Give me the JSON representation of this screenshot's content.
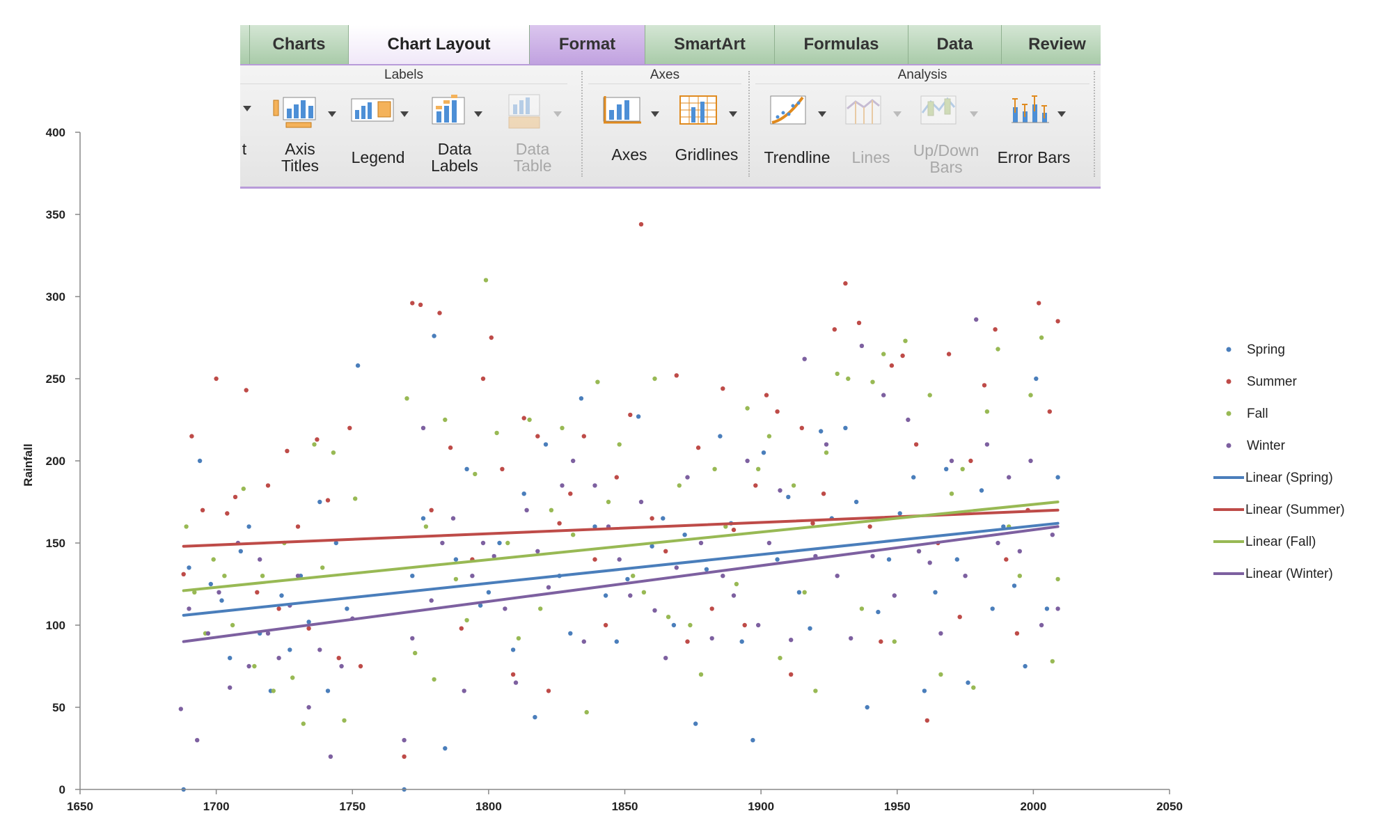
{
  "ribbon": {
    "tabs": [
      {
        "label": "Charts"
      },
      {
        "label": "Chart Layout"
      },
      {
        "label": "Format"
      },
      {
        "label": "SmartArt"
      },
      {
        "label": "Formulas"
      },
      {
        "label": "Data"
      },
      {
        "label": "Review"
      }
    ],
    "active_tab": "Chart Layout",
    "groups": {
      "labels": "Labels",
      "axes": "Axes",
      "analysis": "Analysis"
    },
    "partial_label": "t",
    "buttons": {
      "axis_titles": "Axis\nTitles",
      "legend": "Legend",
      "data_labels": "Data\nLabels",
      "data_table": "Data\nTable",
      "axes": "Axes",
      "gridlines": "Gridlines",
      "trendline": "Trendline",
      "lines": "Lines",
      "updown_bars": "Up/Down\nBars",
      "error_bars": "Error Bars"
    }
  },
  "colors": {
    "spring": "#4a7ebb",
    "summer": "#be4b48",
    "fall": "#98b954",
    "winter": "#7d60a0",
    "accent": "#b89bd9"
  },
  "chart_data": {
    "type": "scatter",
    "title": "",
    "xlabel": "",
    "ylabel": "Rainfall",
    "xlim": [
      1650,
      2050
    ],
    "ylim": [
      0,
      400
    ],
    "xticks": [
      1650,
      1700,
      1750,
      1800,
      1850,
      1900,
      1950,
      2000,
      2050
    ],
    "yticks": [
      0,
      50,
      100,
      150,
      200,
      250,
      300,
      350,
      400
    ],
    "grid": false,
    "legend_position": "right",
    "legend": [
      "Spring",
      "Summer",
      "Fall",
      "Winter",
      "Linear (Spring)",
      "Linear (Summer)",
      "Linear (Fall)",
      "Linear (Winter)"
    ],
    "series": [
      {
        "name": "Spring",
        "x": [
          1688,
          1690,
          1694,
          1698,
          1702,
          1705,
          1709,
          1712,
          1716,
          1720,
          1724,
          1727,
          1731,
          1734,
          1738,
          1741,
          1744,
          1748,
          1752,
          1769,
          1772,
          1776,
          1780,
          1784,
          1788,
          1792,
          1797,
          1800,
          1804,
          1809,
          1813,
          1817,
          1821,
          1826,
          1830,
          1834,
          1839,
          1843,
          1847,
          1851,
          1855,
          1860,
          1864,
          1868,
          1872,
          1876,
          1880,
          1885,
          1889,
          1893,
          1897,
          1901,
          1906,
          1910,
          1914,
          1918,
          1922,
          1926,
          1931,
          1935,
          1939,
          1943,
          1947,
          1951,
          1956,
          1960,
          1964,
          1968,
          1972,
          1976,
          1981,
          1985,
          1989,
          1993,
          1997,
          2001,
          2005,
          2009
        ],
        "values": [
          0,
          135,
          200,
          125,
          115,
          80,
          145,
          160,
          95,
          60,
          118,
          85,
          130,
          102,
          175,
          60,
          150,
          110,
          258,
          0,
          130,
          165,
          276,
          25,
          140,
          195,
          112,
          120,
          150,
          85,
          180,
          44,
          210,
          130,
          95,
          238,
          160,
          118,
          90,
          128,
          227,
          148,
          165,
          100,
          155,
          40,
          134,
          215,
          162,
          90,
          30,
          205,
          140,
          178,
          120,
          98,
          218,
          165,
          220,
          175,
          50,
          108,
          140,
          168,
          190,
          60,
          120,
          195,
          140,
          65,
          182,
          110,
          160,
          124,
          75,
          250,
          110,
          190
        ]
      },
      {
        "name": "Summer",
        "x": [
          1688,
          1691,
          1695,
          1700,
          1704,
          1707,
          1711,
          1715,
          1719,
          1723,
          1726,
          1730,
          1734,
          1737,
          1741,
          1745,
          1749,
          1753,
          1769,
          1772,
          1775,
          1779,
          1782,
          1786,
          1790,
          1794,
          1798,
          1801,
          1805,
          1809,
          1813,
          1818,
          1822,
          1826,
          1830,
          1835,
          1839,
          1843,
          1847,
          1852,
          1856,
          1860,
          1865,
          1869,
          1873,
          1877,
          1882,
          1886,
          1890,
          1894,
          1898,
          1902,
          1906,
          1911,
          1915,
          1919,
          1923,
          1927,
          1931,
          1936,
          1940,
          1944,
          1948,
          1952,
          1957,
          1961,
          1965,
          1969,
          1973,
          1977,
          1982,
          1986,
          1990,
          1994,
          1998,
          2002,
          2006,
          2009
        ],
        "values": [
          131,
          215,
          170,
          250,
          168,
          178,
          243,
          120,
          185,
          110,
          206,
          160,
          98,
          213,
          176,
          80,
          220,
          75,
          20,
          296,
          295,
          170,
          290,
          208,
          98,
          140,
          250,
          275,
          195,
          70,
          226,
          215,
          60,
          162,
          180,
          215,
          140,
          100,
          190,
          228,
          344,
          165,
          145,
          252,
          90,
          208,
          110,
          244,
          158,
          100,
          185,
          240,
          230,
          70,
          220,
          162,
          180,
          280,
          308,
          284,
          160,
          90,
          258,
          264,
          210,
          42,
          150,
          265,
          105,
          200,
          246,
          280,
          140,
          95,
          170,
          296,
          230,
          285
        ]
      },
      {
        "name": "Fall",
        "x": [
          1689,
          1692,
          1696,
          1699,
          1703,
          1706,
          1710,
          1714,
          1717,
          1721,
          1725,
          1728,
          1732,
          1736,
          1739,
          1743,
          1747,
          1751,
          1770,
          1773,
          1777,
          1780,
          1784,
          1788,
          1792,
          1795,
          1799,
          1803,
          1807,
          1811,
          1815,
          1819,
          1823,
          1827,
          1831,
          1836,
          1840,
          1844,
          1848,
          1853,
          1857,
          1861,
          1866,
          1870,
          1874,
          1878,
          1883,
          1887,
          1891,
          1895,
          1899,
          1903,
          1907,
          1912,
          1916,
          1920,
          1924,
          1928,
          1932,
          1937,
          1941,
          1945,
          1949,
          1953,
          1958,
          1962,
          1966,
          1970,
          1974,
          1978,
          1983,
          1987,
          1991,
          1995,
          1999,
          2003,
          2007,
          2009
        ],
        "values": [
          160,
          120,
          95,
          140,
          130,
          100,
          183,
          75,
          130,
          60,
          150,
          68,
          40,
          210,
          135,
          205,
          42,
          177,
          238,
          83,
          160,
          67,
          225,
          128,
          103,
          192,
          310,
          217,
          150,
          92,
          225,
          110,
          170,
          220,
          155,
          47,
          248,
          175,
          210,
          130,
          120,
          250,
          105,
          185,
          100,
          70,
          195,
          160,
          125,
          232,
          195,
          215,
          80,
          185,
          120,
          60,
          205,
          253,
          250,
          110,
          248,
          265,
          90,
          273,
          145,
          240,
          70,
          180,
          195,
          62,
          230,
          268,
          160,
          130,
          240,
          275,
          78,
          128
        ]
      },
      {
        "name": "Winter",
        "x": [
          1687,
          1690,
          1693,
          1697,
          1701,
          1705,
          1708,
          1712,
          1716,
          1719,
          1723,
          1727,
          1730,
          1734,
          1738,
          1742,
          1746,
          1750,
          1769,
          1772,
          1776,
          1779,
          1783,
          1787,
          1791,
          1794,
          1798,
          1802,
          1806,
          1810,
          1814,
          1818,
          1822,
          1827,
          1831,
          1835,
          1839,
          1844,
          1848,
          1852,
          1856,
          1861,
          1865,
          1869,
          1873,
          1878,
          1882,
          1886,
          1890,
          1895,
          1899,
          1903,
          1907,
          1911,
          1916,
          1920,
          1924,
          1928,
          1933,
          1937,
          1941,
          1945,
          1949,
          1954,
          1958,
          1962,
          1966,
          1970,
          1975,
          1979,
          1983,
          1987,
          1991,
          1995,
          1999,
          2003,
          2007,
          2009
        ],
        "values": [
          49,
          110,
          30,
          95,
          120,
          62,
          150,
          75,
          140,
          95,
          80,
          112,
          130,
          50,
          85,
          20,
          75,
          104,
          30,
          92,
          220,
          115,
          150,
          165,
          60,
          130,
          150,
          142,
          110,
          65,
          170,
          145,
          123,
          185,
          200,
          90,
          185,
          160,
          140,
          118,
          175,
          109,
          80,
          135,
          190,
          150,
          92,
          130,
          118,
          200,
          100,
          150,
          182,
          91,
          262,
          142,
          210,
          130,
          92,
          270,
          142,
          240,
          118,
          225,
          145,
          138,
          95,
          200,
          130,
          286,
          210,
          150,
          190,
          145,
          200,
          100,
          155,
          110
        ]
      }
    ],
    "trendlines": [
      {
        "name": "Linear (Spring)",
        "x": [
          1688,
          2009
        ],
        "y": [
          106,
          162
        ]
      },
      {
        "name": "Linear (Summer)",
        "x": [
          1688,
          2009
        ],
        "y": [
          148,
          170
        ]
      },
      {
        "name": "Linear (Fall)",
        "x": [
          1688,
          2009
        ],
        "y": [
          121,
          175
        ]
      },
      {
        "name": "Linear (Winter)",
        "x": [
          1688,
          2009
        ],
        "y": [
          90,
          160
        ]
      }
    ]
  }
}
